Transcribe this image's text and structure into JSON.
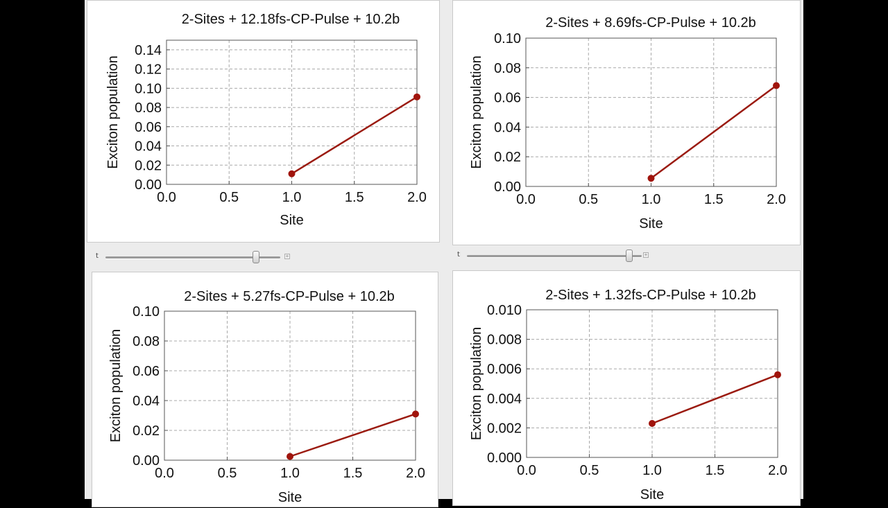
{
  "colors": {
    "line": "#9b1b10",
    "marker": "#a0140c",
    "grid": "#a8a8a8"
  },
  "sliders": [
    {
      "label": "t",
      "value_fraction": 0.86
    },
    {
      "label": "t",
      "value_fraction": 0.93
    }
  ],
  "chart_data": [
    {
      "type": "line",
      "title": "2-Sites + 12.18fs-CP-Pulse + 10.2b",
      "xlabel": "Site",
      "ylabel": "Exciton population",
      "xlim": [
        0.0,
        2.0
      ],
      "ylim": [
        0.0,
        0.15
      ],
      "xticks": [
        "0.0",
        "0.5",
        "1.0",
        "1.5",
        "2.0"
      ],
      "yticks": [
        "0.00",
        "0.02",
        "0.04",
        "0.06",
        "0.08",
        "0.10",
        "0.12",
        "0.14"
      ],
      "grid": true,
      "x": [
        1.0,
        2.0
      ],
      "y": [
        0.011,
        0.091
      ]
    },
    {
      "type": "line",
      "title": "2-Sites + 8.69fs-CP-Pulse + 10.2b",
      "xlabel": "Site",
      "ylabel": "Exciton population",
      "xlim": [
        0.0,
        2.0
      ],
      "ylim": [
        0.0,
        0.1
      ],
      "xticks": [
        "0.0",
        "0.5",
        "1.0",
        "1.5",
        "2.0"
      ],
      "yticks": [
        "0.00",
        "0.02",
        "0.04",
        "0.06",
        "0.08",
        "0.10"
      ],
      "grid": true,
      "x": [
        1.0,
        2.0
      ],
      "y": [
        0.0055,
        0.068
      ]
    },
    {
      "type": "line",
      "title": "2-Sites + 5.27fs-CP-Pulse + 10.2b",
      "xlabel": "Site",
      "ylabel": "Exciton population",
      "xlim": [
        0.0,
        2.0
      ],
      "ylim": [
        0.0,
        0.1
      ],
      "xticks": [
        "0.0",
        "0.5",
        "1.0",
        "1.5",
        "2.0"
      ],
      "yticks": [
        "0.00",
        "0.02",
        "0.04",
        "0.06",
        "0.08",
        "0.10"
      ],
      "grid": true,
      "x": [
        1.0,
        2.0
      ],
      "y": [
        0.0025,
        0.031
      ]
    },
    {
      "type": "line",
      "title": "2-Sites + 1.32fs-CP-Pulse + 10.2b",
      "xlabel": "Site",
      "ylabel": "Exciton population",
      "xlim": [
        0.0,
        2.0
      ],
      "ylim": [
        0.0,
        0.01
      ],
      "xticks": [
        "0.0",
        "0.5",
        "1.0",
        "1.5",
        "2.0"
      ],
      "yticks": [
        "0.000",
        "0.002",
        "0.004",
        "0.006",
        "0.008",
        "0.010"
      ],
      "grid": true,
      "x": [
        1.0,
        2.0
      ],
      "y": [
        0.0023,
        0.0056
      ]
    }
  ]
}
